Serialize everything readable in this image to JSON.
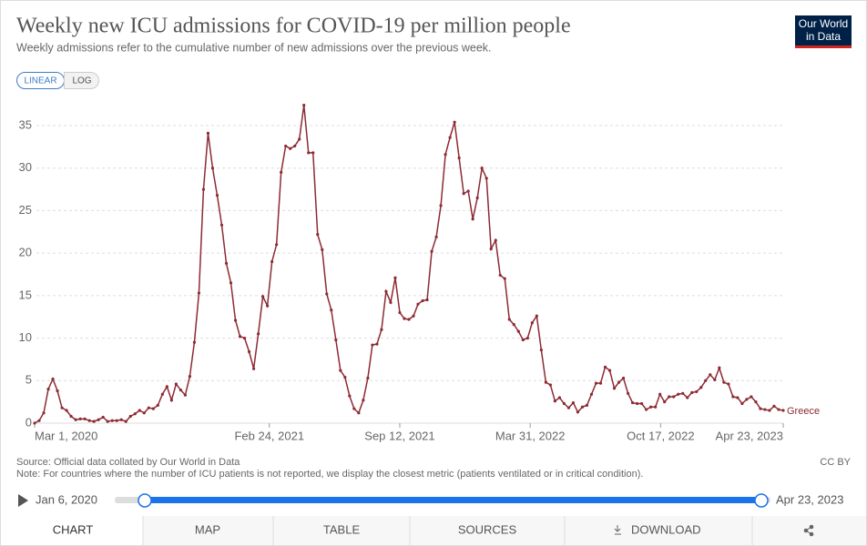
{
  "chart_data": {
    "type": "line",
    "title": "Weekly new ICU admissions for COVID-19 per million people",
    "subtitle": "Weekly admissions refer to the cumulative number of new admissions over the previous week.",
    "x": [
      "2020-03-01",
      "2020-03-08",
      "2020-03-15",
      "2020-03-22",
      "2020-03-29",
      "2020-04-05",
      "2020-04-12",
      "2020-04-19",
      "2020-04-26",
      "2020-05-03",
      "2020-05-10",
      "2020-05-17",
      "2020-05-24",
      "2020-05-31",
      "2020-06-07",
      "2020-06-14",
      "2020-06-21",
      "2020-06-28",
      "2020-07-05",
      "2020-07-12",
      "2020-07-19",
      "2020-07-26",
      "2020-08-02",
      "2020-08-09",
      "2020-08-16",
      "2020-08-23",
      "2020-08-30",
      "2020-09-06",
      "2020-09-13",
      "2020-09-20",
      "2020-09-27",
      "2020-10-04",
      "2020-10-11",
      "2020-10-18",
      "2020-10-25",
      "2020-11-01",
      "2020-11-08",
      "2020-11-15",
      "2020-11-22",
      "2020-11-29",
      "2020-12-06",
      "2020-12-13",
      "2020-12-20",
      "2020-12-27",
      "2021-01-03",
      "2021-01-10",
      "2021-01-17",
      "2021-01-24",
      "2021-01-31",
      "2021-02-07",
      "2021-02-14",
      "2021-02-21",
      "2021-02-28",
      "2021-03-07",
      "2021-03-14",
      "2021-03-21",
      "2021-03-28",
      "2021-04-04",
      "2021-04-11",
      "2021-04-18",
      "2021-04-25",
      "2021-05-02",
      "2021-05-09",
      "2021-05-16",
      "2021-05-23",
      "2021-05-30",
      "2021-06-06",
      "2021-06-13",
      "2021-06-20",
      "2021-06-27",
      "2021-07-04",
      "2021-07-11",
      "2021-07-18",
      "2021-07-25",
      "2021-08-01",
      "2021-08-08",
      "2021-08-15",
      "2021-08-22",
      "2021-08-29",
      "2021-09-05",
      "2021-09-12",
      "2021-09-19",
      "2021-09-26",
      "2021-10-03",
      "2021-10-10",
      "2021-10-17",
      "2021-10-24",
      "2021-10-31",
      "2021-11-07",
      "2021-11-14",
      "2021-11-21",
      "2021-11-28",
      "2021-12-05",
      "2021-12-12",
      "2021-12-19",
      "2021-12-26",
      "2022-01-02",
      "2022-01-09",
      "2022-01-16",
      "2022-01-23",
      "2022-01-30",
      "2022-02-06",
      "2022-02-13",
      "2022-02-20",
      "2022-02-27",
      "2022-03-06",
      "2022-03-13",
      "2022-03-20",
      "2022-03-27",
      "2022-04-03",
      "2022-04-10",
      "2022-04-17",
      "2022-04-24",
      "2022-05-01",
      "2022-05-08",
      "2022-05-15",
      "2022-05-22",
      "2022-05-29",
      "2022-06-05",
      "2022-06-12",
      "2022-06-19",
      "2022-06-26",
      "2022-07-03",
      "2022-07-10",
      "2022-07-17",
      "2022-07-24",
      "2022-07-31",
      "2022-08-07",
      "2022-08-14",
      "2022-08-21",
      "2022-08-28",
      "2022-09-04",
      "2022-09-11",
      "2022-09-18",
      "2022-09-25",
      "2022-10-02",
      "2022-10-09",
      "2022-10-16",
      "2022-10-23",
      "2022-10-30",
      "2022-11-06",
      "2022-11-13",
      "2022-11-20",
      "2022-11-27",
      "2022-12-04",
      "2022-12-11",
      "2022-12-18",
      "2022-12-25",
      "2023-01-01",
      "2023-01-08",
      "2023-01-15",
      "2023-01-22",
      "2023-01-29",
      "2023-02-05",
      "2023-02-12",
      "2023-02-19",
      "2023-02-26",
      "2023-03-05",
      "2023-03-12",
      "2023-03-19",
      "2023-03-26",
      "2023-04-02",
      "2023-04-09",
      "2023-04-16",
      "2023-04-23"
    ],
    "series": [
      {
        "name": "Greece",
        "color": "#8c2b33",
        "values": [
          0,
          0.3,
          1.2,
          4.0,
          5.2,
          3.8,
          1.8,
          1.5,
          0.8,
          0.4,
          0.5,
          0.5,
          0.3,
          0.2,
          0.4,
          0.7,
          0.2,
          0.3,
          0.3,
          0.4,
          0.2,
          0.8,
          1.1,
          1.5,
          1.2,
          1.8,
          1.7,
          2.1,
          3.4,
          4.3,
          2.7,
          4.6,
          3.9,
          3.3,
          5.5,
          9.5,
          15.3,
          27.5,
          34.1,
          30,
          26.8,
          23.3,
          18.8,
          16.5,
          12.1,
          10.2,
          10.0,
          8.4,
          6.4,
          10.5,
          14.9,
          13.8,
          19,
          21,
          29.5,
          32.6,
          32.3,
          32.6,
          33.4,
          37.4,
          31.8,
          31.8,
          22.2,
          20.4,
          15.2,
          13.3,
          9.8,
          6.2,
          5.4,
          3.2,
          1.7,
          1.2,
          2.7,
          5.3,
          9.2,
          9.3,
          11,
          15.5,
          14.2,
          17.1,
          13,
          12.3,
          12.2,
          12.6,
          14,
          14.4,
          14.5,
          20.2,
          21.9,
          25.6,
          31.6,
          33.6,
          35.4,
          31.2,
          27,
          27.3,
          24,
          26.5,
          30,
          28.8,
          20.5,
          21.5,
          17.4,
          17,
          12.2,
          11.6,
          10.8,
          9.8,
          10,
          11.8,
          12.6,
          8.6,
          4.8,
          4.5,
          2.6,
          3.0,
          2.3,
          1.8,
          2.4,
          1.3,
          1.9,
          2.1,
          3.4,
          4.7,
          4.7,
          6.6,
          6.2,
          4.1,
          4.8,
          5.3,
          3.5,
          2.4,
          2.3,
          2.3,
          1.6,
          1.9,
          1.9,
          3.4,
          2.5,
          3.1,
          3.1,
          3.4,
          3.5,
          3.0,
          3.6,
          3.7,
          4.2,
          5,
          5.7,
          5.1,
          6.5,
          4.8,
          4.6,
          3.1,
          3.0,
          2.3,
          2.8,
          3.1,
          2.5,
          1.7,
          1.6,
          1.5,
          2.0,
          1.6,
          1.5
        ]
      }
    ],
    "xlim": [
      "2020-03-01",
      "2023-04-23"
    ],
    "xticks": [
      {
        "value": "2020-03-01",
        "label": "Mar 1, 2020"
      },
      {
        "value": "2021-02-24",
        "label": "Feb 24, 2021"
      },
      {
        "value": "2021-09-12",
        "label": "Sep 12, 2021"
      },
      {
        "value": "2022-03-31",
        "label": "Mar 31, 2022"
      },
      {
        "value": "2022-10-17",
        "label": "Oct 17, 2022"
      },
      {
        "value": "2023-04-23",
        "label": "Apr 23, 2023"
      }
    ],
    "ylim": [
      0,
      38
    ],
    "yticks": [
      0,
      5,
      10,
      15,
      20,
      25,
      30,
      35
    ],
    "grid": true
  },
  "ui": {
    "logo": [
      "Our World",
      "in Data"
    ],
    "scale_buttons": [
      "LINEAR",
      "LOG"
    ],
    "source": "Source: Official data collated by Our World in Data",
    "note": "Note: For countries where the number of ICU patients is not reported, we display the closest metric (patients ventilated or in critical condition).",
    "license": "CC BY",
    "timeline_start": "Jan 6, 2020",
    "timeline_end": "Apr 23, 2023",
    "tabs": [
      "CHART",
      "MAP",
      "TABLE",
      "SOURCES",
      "DOWNLOAD"
    ]
  }
}
